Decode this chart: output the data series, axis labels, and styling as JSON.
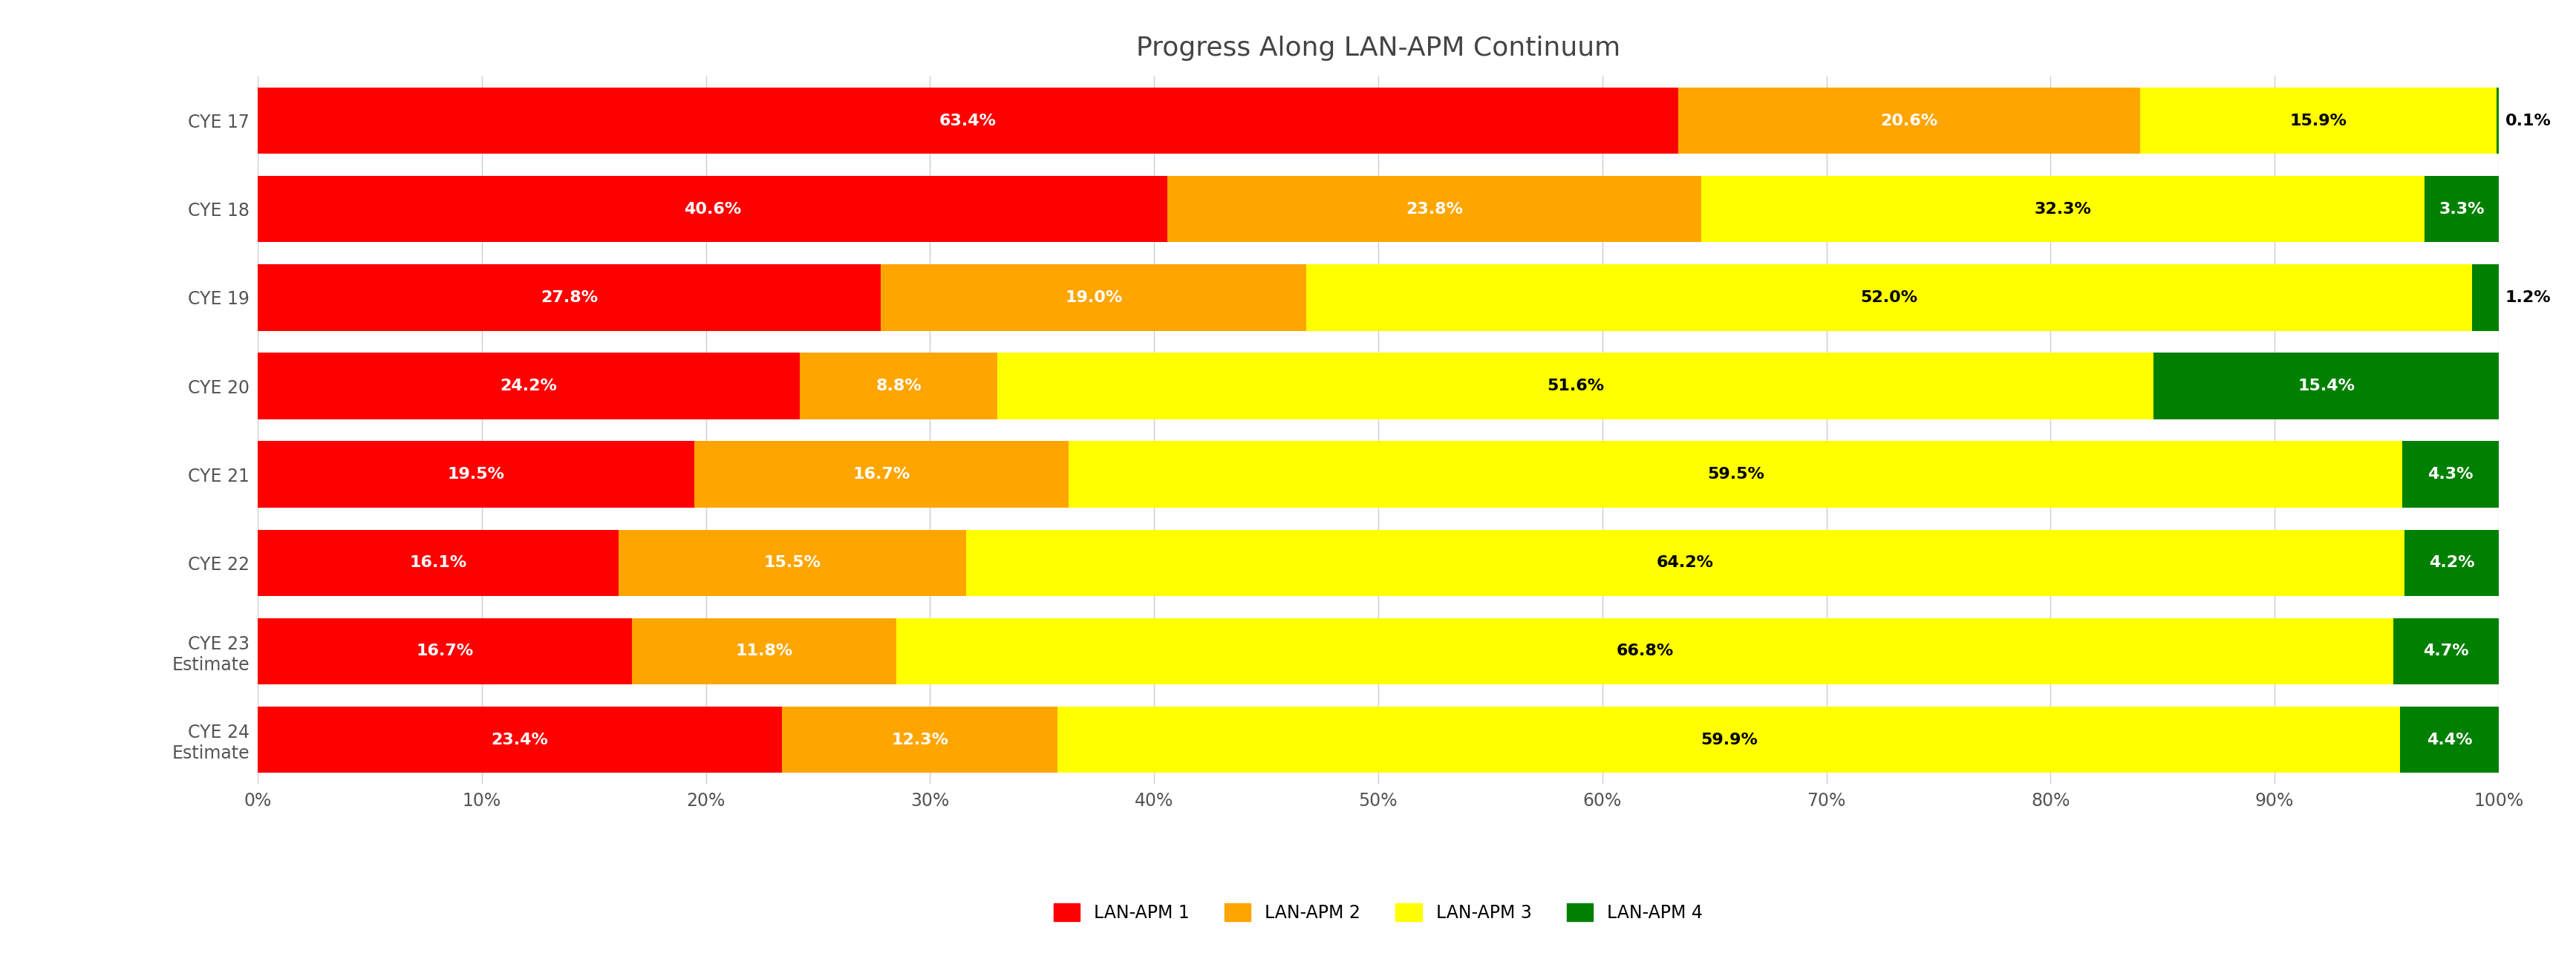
{
  "title": "Progress Along LAN-APM Continuum",
  "categories": [
    "CYE 17",
    "CYE 18",
    "CYE 19",
    "CYE 20",
    "CYE 21",
    "CYE 22",
    "CYE 23\nEstimate",
    "CYE 24\nEstimate"
  ],
  "lanapm1": [
    63.4,
    40.6,
    27.8,
    24.2,
    19.5,
    16.1,
    16.7,
    23.4
  ],
  "lanapm2": [
    20.6,
    23.8,
    19.0,
    8.8,
    16.7,
    15.5,
    11.8,
    12.3
  ],
  "lanapm3": [
    15.9,
    32.3,
    52.0,
    51.6,
    59.5,
    64.2,
    66.8,
    59.9
  ],
  "lanapm4": [
    0.1,
    3.3,
    1.2,
    15.4,
    4.3,
    4.2,
    4.7,
    4.4
  ],
  "labels1": [
    "63.4%",
    "40.6%",
    "27.8%",
    "24.2%",
    "19.5%",
    "16.1%",
    "16.7%",
    "23.4%"
  ],
  "labels2": [
    "20.6%",
    "23.8%",
    "19.0%",
    "8.8%",
    "16.7%",
    "15.5%",
    "11.8%",
    "12.3%"
  ],
  "labels3": [
    "15.9%",
    "32.3%",
    "52.0%",
    "51.6%",
    "59.5%",
    "64.2%",
    "66.8%",
    "59.9%"
  ],
  "labels4": [
    "0.1%",
    "3.3%",
    "1.2%",
    "15.4%",
    "4.3%",
    "4.2%",
    "4.7%",
    "4.4%"
  ],
  "color1": "#FF0000",
  "color2": "#FFA500",
  "color3": "#FFFF00",
  "color4": "#008000",
  "legend_labels": [
    "LAN-APM 1",
    "LAN-APM 2",
    "LAN-APM 3",
    "LAN-APM 4"
  ],
  "background_color": "#FFFFFF",
  "bar_height": 0.75,
  "title_fontsize": 26,
  "label_fontsize": 16,
  "tick_fontsize": 17,
  "legend_fontsize": 17
}
